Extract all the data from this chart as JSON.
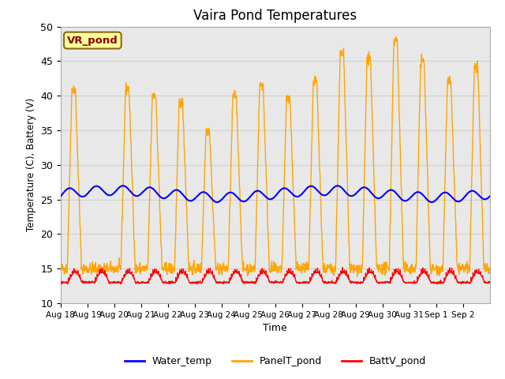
{
  "title": "Vaira Pond Temperatures",
  "xlabel": "Time",
  "ylabel": "Temperature (C), Battery (V)",
  "ylim": [
    10,
    50
  ],
  "annotation_text": "VR_pond",
  "annotation_color": "#8B0000",
  "annotation_bg": "#FFFF99",
  "annotation_border": "#8B6914",
  "water_color": "blue",
  "panel_color": "orange",
  "batt_color": "red",
  "grid_color": "#d0d0d0",
  "bg_color": "#e8e8e8",
  "legend_labels": [
    "Water_temp",
    "PanelT_pond",
    "BattV_pond"
  ],
  "xtick_labels": [
    "Aug 18",
    "Aug 19",
    "Aug 20",
    "Aug 21",
    "Aug 22",
    "Aug 23",
    "Aug 24",
    "Aug 25",
    "Aug 26",
    "Aug 27",
    "Aug 28",
    "Aug 29",
    "Aug 30",
    "Aug 31",
    "Sep 1",
    "Sep 2"
  ],
  "num_days": 16,
  "points_per_day": 96,
  "panel_peaks": [
    41,
    15,
    41,
    40,
    39,
    35,
    40,
    41.5,
    39.5,
    42,
    46,
    45.5,
    48,
    45,
    42,
    44
  ],
  "panel_min": 15,
  "water_base": 25.8,
  "batt_base": 13.0,
  "batt_spike": 1.5
}
